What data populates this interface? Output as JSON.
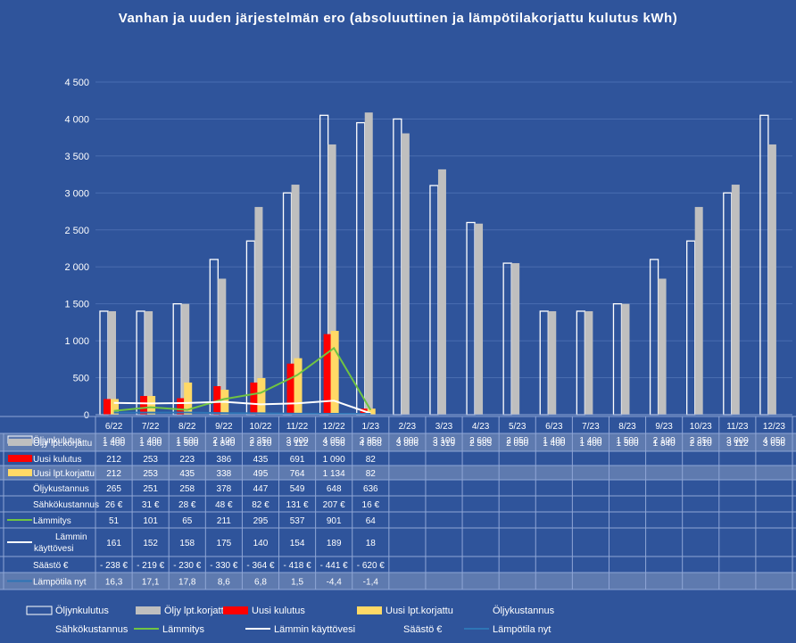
{
  "chart_data": {
    "type": "bar",
    "title": "Vanhan ja uuden järjestelmän ero (absoluuttinen ja lämpötilakorjattu kulutus kWh)",
    "ylim": [
      0,
      4500
    ],
    "yticks": [
      "0",
      "500",
      "1 000",
      "1 500",
      "2 000",
      "2 500",
      "3 000",
      "3 500",
      "4 000",
      "4 500"
    ],
    "categories": [
      "6/22",
      "7/22",
      "8/22",
      "9/22",
      "10/22",
      "11/22",
      "12/22",
      "1/23",
      "2/23",
      "3/23",
      "4/23",
      "5/23",
      "6/23",
      "7/23",
      "8/23",
      "9/23",
      "10/23",
      "11/23",
      "12/23"
    ],
    "series": [
      {
        "key": "oljy",
        "name": "Öljynkulutus",
        "mark": "bar",
        "color": "#ffffff",
        "outline": true,
        "values": [
          1400,
          1400,
          1500,
          2100,
          2350,
          3000,
          4050,
          3950,
          4000,
          3100,
          2600,
          2050,
          1400,
          1400,
          1500,
          2100,
          2350,
          3000,
          4050
        ],
        "labels": [
          "1 400",
          "1 400",
          "1 500",
          "2 100",
          "2 350",
          "3 000",
          "4 050",
          "3 950",
          "4 000",
          "3 100",
          "2 600",
          "2 050",
          "1 400",
          "1 400",
          "1 500",
          "2 100",
          "2 350",
          "3 000",
          "4 050"
        ]
      },
      {
        "key": "oljyk",
        "name": "Öljy lpt.korjattu",
        "mark": "bar",
        "color": "#bfbfbf",
        "values": [
          1400,
          1400,
          1500,
          1840,
          2810,
          3112,
          3656,
          4088,
          3806,
          3319,
          2585,
          2050,
          1400,
          1400,
          1500,
          1840,
          2810,
          3112,
          3656
        ],
        "labels": [
          "1 400",
          "1 400",
          "1 500",
          "1 840",
          "2 810",
          "3 112",
          "3 656",
          "4 088",
          "3 806",
          "3 319",
          "2 585",
          "2 050",
          "1 400",
          "1 400",
          "1 500",
          "1 840",
          "2 810",
          "3 112",
          "3 656"
        ]
      },
      {
        "key": "uusi",
        "name": "Uusi kulutus",
        "mark": "bar",
        "color": "#ff0000",
        "values": [
          212,
          253,
          223,
          386,
          435,
          691,
          1090,
          82,
          null,
          null,
          null,
          null,
          null,
          null,
          null,
          null,
          null,
          null,
          null
        ],
        "labels": [
          "212",
          "253",
          "223",
          "386",
          "435",
          "691",
          "1 090",
          "82",
          "",
          "",
          "",
          "",
          "",
          "",
          "",
          "",
          "",
          "",
          ""
        ]
      },
      {
        "key": "uusik",
        "name": "Uusi lpt.korjattu",
        "mark": "bar",
        "color": "#ffd966",
        "values": [
          212,
          253,
          435,
          338,
          495,
          764,
          1134,
          82,
          null,
          null,
          null,
          null,
          null,
          null,
          null,
          null,
          null,
          null,
          null
        ],
        "labels": [
          "212",
          "253",
          "435",
          "338",
          "495",
          "764",
          "1 134",
          "82",
          "",
          "",
          "",
          "",
          "",
          "",
          "",
          "",
          "",
          "",
          ""
        ]
      },
      {
        "key": "oljykust",
        "name": "Öljykustannus",
        "mark": "none",
        "color": "#2f549b",
        "labels": [
          "265",
          "251",
          "258",
          "378",
          "447",
          "549",
          "648",
          "636",
          "",
          "",
          "",
          "",
          "",
          "",
          "",
          "",
          "",
          "",
          ""
        ]
      },
      {
        "key": "sahko",
        "name": "Sähkökustannus",
        "mark": "none",
        "color": "#2f549b",
        "labels": [
          "26 €",
          "31 €",
          "28 €",
          "48 €",
          "82 €",
          "131 €",
          "207 €",
          "16 €",
          "",
          "",
          "",
          "",
          "",
          "",
          "",
          "",
          "",
          "",
          ""
        ]
      },
      {
        "key": "lammitys",
        "name": "Lämmitys",
        "mark": "line",
        "color": "#70c442",
        "values": [
          51,
          101,
          65,
          211,
          295,
          537,
          901,
          64,
          null,
          null,
          null,
          null,
          null,
          null,
          null,
          null,
          null,
          null,
          null
        ],
        "labels": [
          "51",
          "101",
          "65",
          "211",
          "295",
          "537",
          "901",
          "64",
          "",
          "",
          "",
          "",
          "",
          "",
          "",
          "",
          "",
          "",
          ""
        ]
      },
      {
        "key": "kv",
        "name": "Lämmin käyttövesi",
        "mark": "line",
        "color": "#ffffff",
        "values": [
          161,
          152,
          158,
          175,
          140,
          154,
          189,
          18,
          null,
          null,
          null,
          null,
          null,
          null,
          null,
          null,
          null,
          null,
          null
        ],
        "labels": [
          "161",
          "152",
          "158",
          "175",
          "140",
          "154",
          "189",
          "18",
          "",
          "",
          "",
          "",
          "",
          "",
          "",
          "",
          "",
          "",
          ""
        ]
      },
      {
        "key": "saasto",
        "name": "Säästö €",
        "mark": "none",
        "color": "#2f549b",
        "labels": [
          "- 238 €",
          "- 219 €",
          "- 230 €",
          "- 330 €",
          "- 364 €",
          "- 418 €",
          "- 441 €",
          "- 620 €",
          "",
          "",
          "",
          "",
          "",
          "",
          "",
          "",
          "",
          "",
          ""
        ]
      },
      {
        "key": "lampo",
        "name": "Lämpötila nyt",
        "mark": "line",
        "color": "#2e75b6",
        "values": [
          16.3,
          17.1,
          17.8,
          8.6,
          6.8,
          1.5,
          -4.4,
          -1.4,
          null,
          null,
          null,
          null,
          null,
          null,
          null,
          null,
          null,
          null,
          null
        ],
        "labels": [
          "16,3",
          "17,1",
          "17,8",
          "8,6",
          "6,8",
          "1,5",
          "-4,4",
          "-1,4",
          "",
          "",
          "",
          "",
          "",
          "",
          "",
          "",
          "",
          "",
          ""
        ]
      }
    ],
    "legend_row_names": [
      [
        "Öljynkulutus"
      ],
      [
        "Öljy lpt.korjattu"
      ],
      [
        "Uusi kulutus"
      ],
      [
        "Uusi lpt.korjattu"
      ],
      [
        "Öljykustannus"
      ],
      [
        "Sähkökustannus"
      ],
      [
        "Lämmitys"
      ],
      [
        "Lämmin",
        "käyttövesi"
      ],
      [
        "Säästö €"
      ],
      [
        "Lämpötila nyt"
      ]
    ],
    "legend_position": "bottom",
    "data_table": true
  }
}
